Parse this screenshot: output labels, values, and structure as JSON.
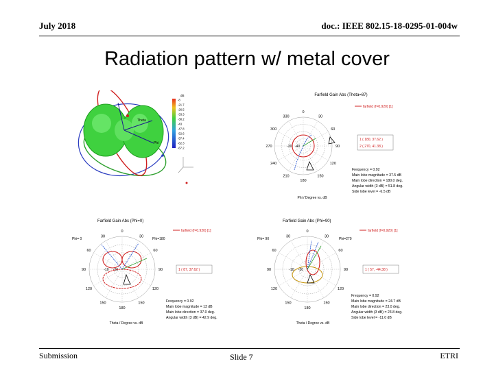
{
  "header": {
    "left": "July 2018",
    "right": "doc.: IEEE 802.15-18-0295-01-004w"
  },
  "title": "Radiation pattern w/ metal cover",
  "footer": {
    "left": "Submission",
    "center": "Slide 7",
    "right": "ETRI"
  },
  "pattern3d": {
    "colorbar_title": "dB",
    "colorbar_labels": [
      "-8",
      "-21.7",
      "-26.5",
      "-33.3",
      "-38.2",
      "-43",
      "-47.8",
      "-52.6",
      "-57.4",
      "-62.3",
      "-67.2"
    ],
    "axis_labels": [
      "Theta",
      "Phi"
    ]
  },
  "plot_top": {
    "title": "Farfield Gain Abs (Theta=87)",
    "legend": "farfield (f=0.920) [1]",
    "markers": [
      "1 ( 180, 37.62 )",
      "2 ( 270, 41.38 )"
    ],
    "angle_labels": [
      "0",
      "30",
      "60",
      "90",
      "120",
      "150",
      "180",
      "210",
      "240",
      "270",
      "300",
      "330"
    ],
    "radial_labels": [
      "-40",
      "-20"
    ],
    "stats": [
      "Frequency = 0.92",
      "Main lobe magnitude = 37.5 dB",
      "Main lobe direction = 180.0 deg.",
      "Angular width (3 dB) = 51.8 deg.",
      "Side lobe level = -6.5 dB"
    ],
    "xlabel": "Phi / Degree vs. dB"
  },
  "plot_bl": {
    "title": "Farfield Gain Abs (Phi=0)",
    "legend": "farfield (f=0.920) [1]",
    "phi_left": "Phi= 0",
    "phi_right": "Phi=180",
    "markers": [
      "1 ( 87, 37.62 )"
    ],
    "angle_labels": [
      "0",
      "30",
      "60",
      "90",
      "120",
      "150",
      "180",
      "150",
      "120",
      "90",
      "60",
      "30"
    ],
    "radial_labels": [
      "-30",
      "-10"
    ],
    "stats": [
      "Frequency = 0.92",
      "Main lobe magnitude = 13 dB",
      "Main lobe direction = 37.0 deg.",
      "Angular width (3 dB) = 42.9 deg."
    ],
    "xlabel": "Theta / Degree vs. dB"
  },
  "plot_br": {
    "title": "Farfield Gain Abs (Phi=90)",
    "legend": "farfield (f=0.920) [1]",
    "phi_left": "Phi= 90",
    "phi_right": "Phi=270",
    "markers": [
      "1 ( 57, -44.38 )"
    ],
    "angle_labels": [
      "0",
      "30",
      "60",
      "90",
      "120",
      "150",
      "180",
      "150",
      "120",
      "90",
      "60",
      "30"
    ],
    "radial_labels": [
      "-30",
      "-10"
    ],
    "stats": [
      "Frequency = 0.92",
      "Main lobe magnitude = 24.7 dB",
      "Main lobe direction = 23.0 deg.",
      "Angular width (3 dB) = 23.8 deg.",
      "Side lobe level = -11.0 dB"
    ],
    "xlabel": "Theta / Degree vs. dB"
  }
}
